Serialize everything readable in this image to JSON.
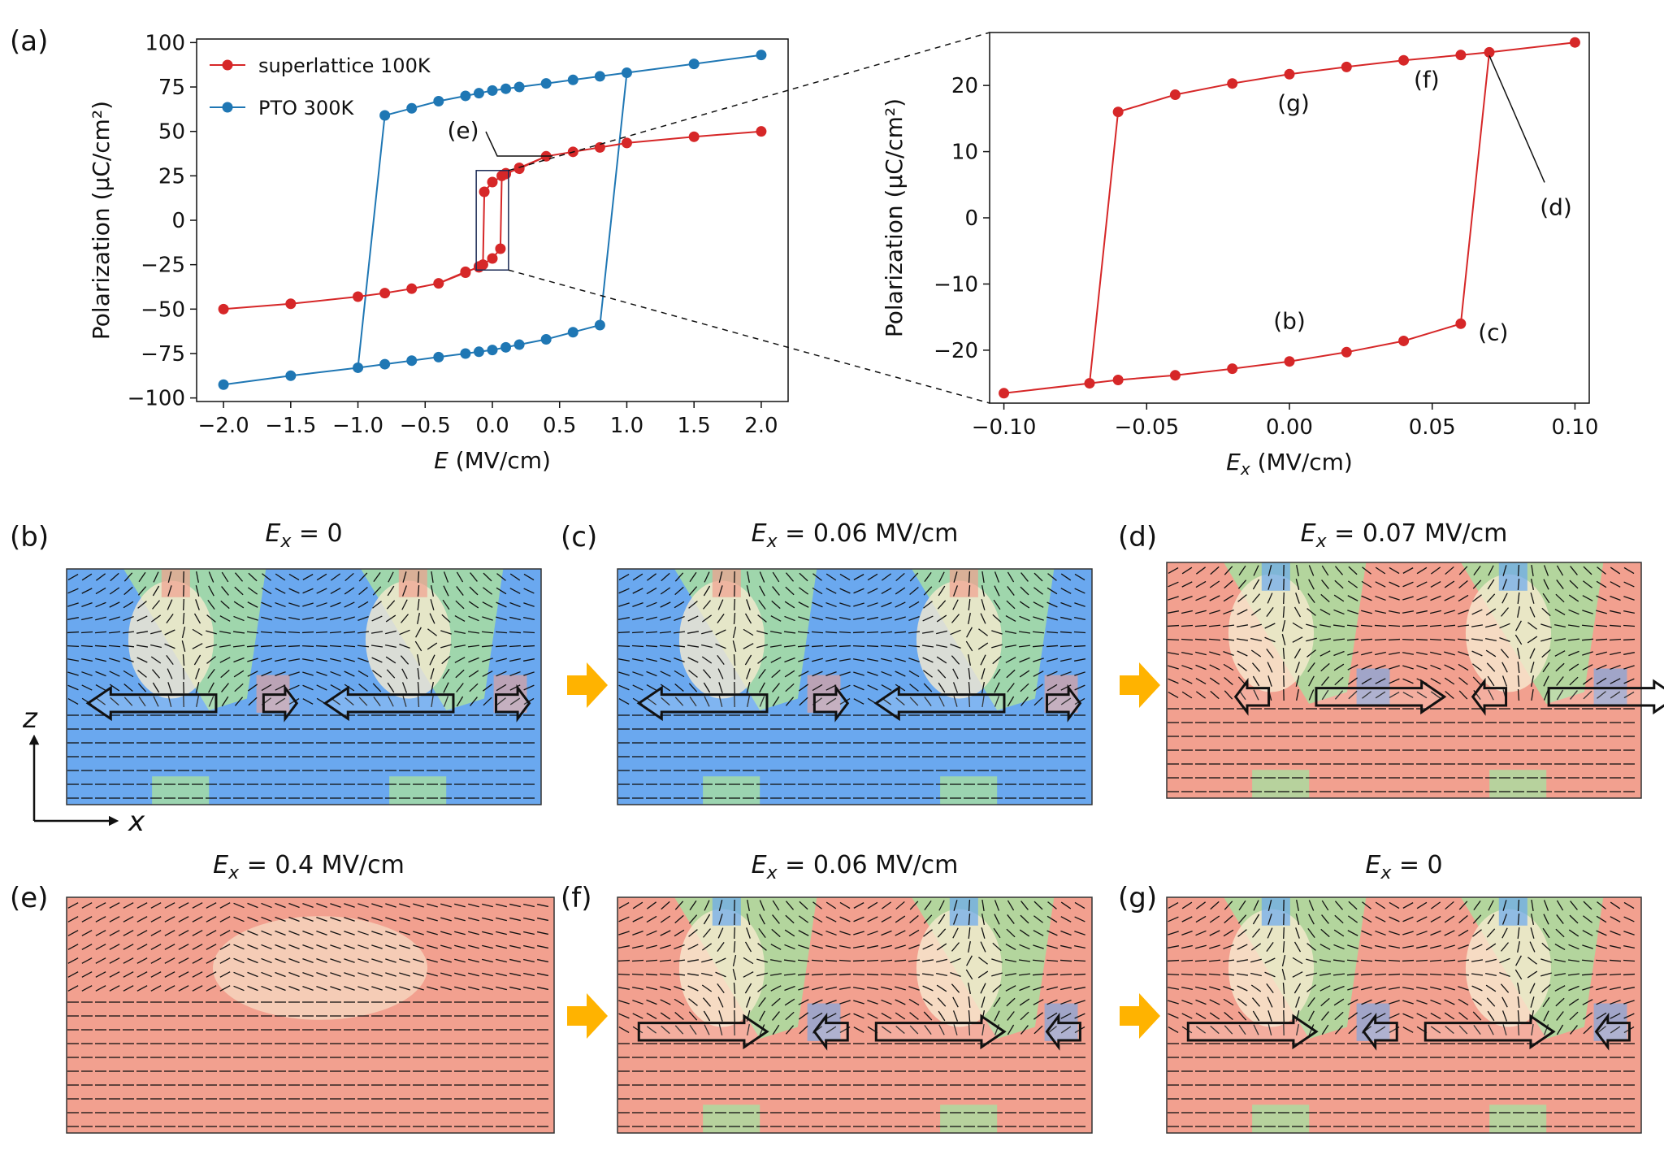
{
  "colors": {
    "red": "#d62728",
    "blue": "#1f77b4",
    "orange": "#ffb300",
    "domain_blue": "#6aa8ef",
    "domain_red": "#f2a08f",
    "domain_green": "#a8dea0",
    "domain_cream": "#f6ead0"
  },
  "panel_labels": {
    "a": "(a)",
    "b": "(b)",
    "c": "(c)",
    "d": "(d)",
    "e": "(e)",
    "f": "(f)",
    "g": "(g)"
  },
  "chart_data": [
    {
      "type": "line",
      "panel": "(a)",
      "xlabel_italic": "E",
      "xlabel_unit": " (MV/cm)",
      "ylabel": "Polarization (μC/cm²)",
      "xlim": [
        -2.2,
        2.2
      ],
      "ylim": [
        -102,
        102
      ],
      "xticks": [
        -2.0,
        -1.5,
        -1.0,
        -0.5,
        0.0,
        0.5,
        1.0,
        1.5,
        2.0
      ],
      "xtick_labels": [
        "−2.0",
        "−1.5",
        "−1.0",
        "−0.5",
        "0.0",
        "0.5",
        "1.0",
        "1.5",
        "2.0"
      ],
      "yticks": [
        -100,
        -75,
        -50,
        -25,
        0,
        25,
        50,
        75,
        100
      ],
      "ytick_labels": [
        "−100",
        "−75",
        "−50",
        "−25",
        "0",
        "25",
        "50",
        "75",
        "100"
      ],
      "legend": [
        "superlattice 100K",
        "PTO 300K"
      ],
      "annotation": "(e)",
      "series": [
        {
          "name": "PTO 300K",
          "color": "#1f77b4",
          "points": [
            [
              -2.0,
              -92.5
            ],
            [
              -1.5,
              -87.5
            ],
            [
              -1.0,
              -83
            ],
            [
              -0.8,
              -81
            ],
            [
              -0.6,
              -79
            ],
            [
              -0.4,
              -77
            ],
            [
              -0.2,
              -75
            ],
            [
              -0.1,
              -74
            ],
            [
              0.0,
              -73
            ],
            [
              0.1,
              -71.5
            ],
            [
              0.2,
              -70
            ],
            [
              0.4,
              -67
            ],
            [
              0.6,
              -63
            ],
            [
              0.8,
              -59
            ],
            [
              1.0,
              83
            ],
            [
              1.5,
              88
            ],
            [
              2.0,
              93
            ],
            [
              1.5,
              88
            ],
            [
              1.0,
              83
            ],
            [
              0.8,
              81
            ],
            [
              0.6,
              79
            ],
            [
              0.4,
              77
            ],
            [
              0.2,
              75
            ],
            [
              0.1,
              74
            ],
            [
              0.0,
              73
            ],
            [
              -0.1,
              71.5
            ],
            [
              -0.2,
              70
            ],
            [
              -0.4,
              67
            ],
            [
              -0.6,
              63
            ],
            [
              -0.8,
              59
            ],
            [
              -1.0,
              -83
            ],
            [
              -1.5,
              -87.5
            ],
            [
              -2.0,
              -92.5
            ]
          ]
        },
        {
          "name": "superlattice 100K",
          "color": "#d62728",
          "points": [
            [
              -2.0,
              -50
            ],
            [
              -1.5,
              -47
            ],
            [
              -1.0,
              -43
            ],
            [
              -0.8,
              -41
            ],
            [
              -0.6,
              -38.5
            ],
            [
              -0.4,
              -35.5
            ],
            [
              -0.2,
              -29.5
            ],
            [
              -0.1,
              -26
            ],
            [
              0.0,
              -21.5
            ],
            [
              0.06,
              -16
            ],
            [
              0.07,
              25
            ],
            [
              0.1,
              26.5
            ],
            [
              0.2,
              29
            ],
            [
              0.4,
              36
            ],
            [
              0.6,
              38.5
            ],
            [
              0.8,
              41
            ],
            [
              1.0,
              43.5
            ],
            [
              1.5,
              47
            ],
            [
              2.0,
              50
            ],
            [
              1.5,
              47
            ],
            [
              1.0,
              43.5
            ],
            [
              0.8,
              41
            ],
            [
              0.6,
              38.5
            ],
            [
              0.4,
              36
            ],
            [
              0.2,
              29.5
            ],
            [
              0.1,
              26
            ],
            [
              0.0,
              21.5
            ],
            [
              -0.06,
              16
            ],
            [
              -0.07,
              -25
            ],
            [
              -0.1,
              -26.5
            ],
            [
              -0.2,
              -29
            ],
            [
              -0.4,
              -35.5
            ],
            [
              -0.6,
              -38.5
            ],
            [
              -0.8,
              -41
            ],
            [
              -1.0,
              -43
            ],
            [
              -1.5,
              -47
            ],
            [
              -2.0,
              -50
            ]
          ]
        }
      ],
      "inset_box": {
        "x": [
          -0.12,
          0.12
        ],
        "y": [
          -28,
          28
        ]
      }
    },
    {
      "type": "line",
      "panel": "zoom",
      "xlabel_italic": "E",
      "xlabel_sub": "x",
      "xlabel_unit": " (MV/cm)",
      "ylabel": "Polarization (μC/cm²)",
      "xlim": [
        -0.105,
        0.105
      ],
      "ylim": [
        -28,
        28
      ],
      "xticks": [
        -0.1,
        -0.05,
        0.0,
        0.05,
        0.1
      ],
      "xtick_labels": [
        "−0.10",
        "−0.05",
        "0.00",
        "0.05",
        "0.10"
      ],
      "yticks": [
        -20,
        -10,
        0,
        10,
        20
      ],
      "ytick_labels": [
        "−20",
        "−10",
        "0",
        "10",
        "20"
      ],
      "series": [
        {
          "name": "superlattice 100K",
          "color": "#d62728",
          "points": [
            [
              -0.1,
              -26.5
            ],
            [
              -0.07,
              -25
            ],
            [
              -0.06,
              -24.5
            ],
            [
              -0.04,
              -23.8
            ],
            [
              -0.02,
              -22.8
            ],
            [
              0.0,
              -21.7
            ],
            [
              0.02,
              -20.3
            ],
            [
              0.04,
              -18.6
            ],
            [
              0.06,
              -16
            ],
            [
              0.07,
              25
            ],
            [
              0.1,
              26.5
            ],
            [
              0.07,
              25
            ],
            [
              0.06,
              24.6
            ],
            [
              0.04,
              23.8
            ],
            [
              0.02,
              22.8
            ],
            [
              0.0,
              21.7
            ],
            [
              -0.02,
              20.3
            ],
            [
              -0.04,
              18.6
            ],
            [
              -0.06,
              16
            ],
            [
              -0.07,
              -25
            ],
            [
              -0.1,
              -26.5
            ]
          ]
        }
      ],
      "point_labels": [
        {
          "text": "(g)",
          "x": 0.0,
          "y": 21.7
        },
        {
          "text": "(f)",
          "x": 0.06,
          "y": 24.6
        },
        {
          "text": "(d)",
          "x": 0.07,
          "y": 25
        },
        {
          "text": "(b)",
          "x": 0.0,
          "y": -21.7
        },
        {
          "text": "(c)",
          "x": 0.06,
          "y": -16
        }
      ]
    }
  ],
  "field_panels": [
    {
      "id": "b",
      "label": "(b)",
      "title_sym": "E",
      "title_sub": "x",
      "title_rest": " = 0",
      "state": "neg",
      "arrows": [
        "left",
        "right",
        "left",
        "right"
      ]
    },
    {
      "id": "c",
      "label": "(c)",
      "title_sym": "E",
      "title_sub": "x",
      "title_rest": " = 0.06 MV/cm",
      "state": "neg",
      "arrows": [
        "left",
        "right",
        "left",
        "right"
      ]
    },
    {
      "id": "d",
      "label": "(d)",
      "title_sym": "E",
      "title_sub": "x",
      "title_rest": " = 0.07 MV/cm",
      "state": "pos",
      "arrows": [
        "left",
        "right",
        "left",
        "right"
      ]
    },
    {
      "id": "e",
      "label": "(e)",
      "title_sym": "E",
      "title_sub": "x",
      "title_rest": " = 0.4 MV/cm",
      "state": "sat",
      "arrows": []
    },
    {
      "id": "f",
      "label": "(f)",
      "title_sym": "E",
      "title_sub": "x",
      "title_rest": " = 0.06 MV/cm",
      "state": "pos",
      "arrows": [
        "right",
        "left",
        "right",
        "left"
      ]
    },
    {
      "id": "g",
      "label": "(g)",
      "title_sym": "E",
      "title_sub": "x",
      "title_rest": " = 0",
      "state": "pos",
      "arrows": [
        "right",
        "left",
        "right",
        "left"
      ]
    }
  ],
  "axes_indicator": {
    "z": "z",
    "x": "x"
  }
}
